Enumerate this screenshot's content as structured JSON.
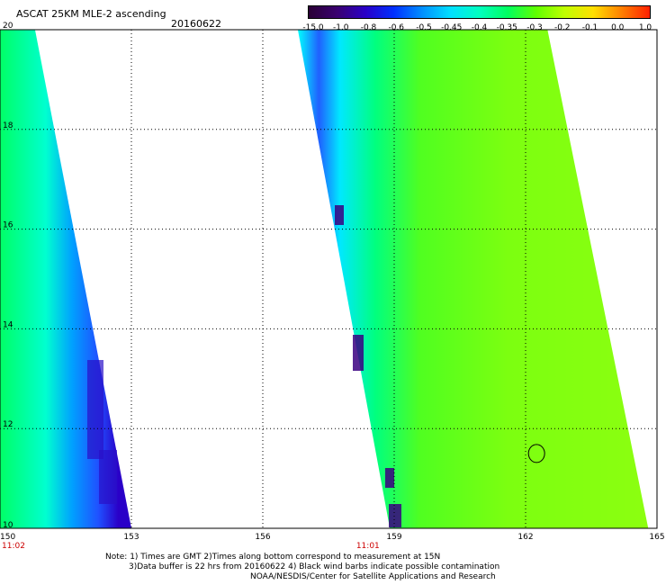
{
  "header": {
    "title": "ASCAT 25KM MLE-2 ascending",
    "date": "20160622"
  },
  "colorbar": {
    "labels": [
      "-15.0",
      "-1.0",
      "-0.8",
      "-0.6",
      "-0.5",
      "-0.45",
      "-0.4",
      "-0.35",
      "-0.3",
      "-0.2",
      "-0.1",
      "0.0",
      "1.0"
    ],
    "colors": [
      "#2a0035",
      "#3a0070",
      "#2a00c8",
      "#0030ff",
      "#0090ff",
      "#00e0ff",
      "#00ffc0",
      "#00ff60",
      "#60ff00",
      "#c0ff00",
      "#ffe000",
      "#ff8000",
      "#ff2000"
    ]
  },
  "map": {
    "lon_ticks": [
      "150",
      "153",
      "156",
      "159",
      "162",
      "165"
    ],
    "lat_ticks": [
      "20",
      "18",
      "16",
      "14",
      "12",
      "10"
    ],
    "lon_range": [
      150,
      165
    ],
    "lat_range": [
      10,
      20
    ],
    "pass_times": [
      {
        "label": "11:02",
        "lon": 150
      },
      {
        "label": "11:01",
        "lon": 158.4
      }
    ],
    "swaths": [
      {
        "name": "west-swath",
        "lon_at_lat20": [
          150.0,
          150.8
        ],
        "lon_at_lat10": [
          150.0,
          153.0
        ]
      },
      {
        "name": "east-swath",
        "lon_at_lat20": [
          156.8,
          162.5
        ],
        "lon_at_lat10": [
          158.9,
          164.8
        ]
      }
    ],
    "contamination_marker": {
      "lon": 162.25,
      "lat": 11.5
    }
  },
  "notes": {
    "line1": "Note: 1) Times are GMT 2)Times along bottom correspond to measurement at 15N",
    "line2": "3)Data buffer is 22 hrs from 20160622 4) Black wind barbs indicate possible contamination",
    "line3": "NOAA/NESDIS/Center for Satellite Applications and Research"
  }
}
